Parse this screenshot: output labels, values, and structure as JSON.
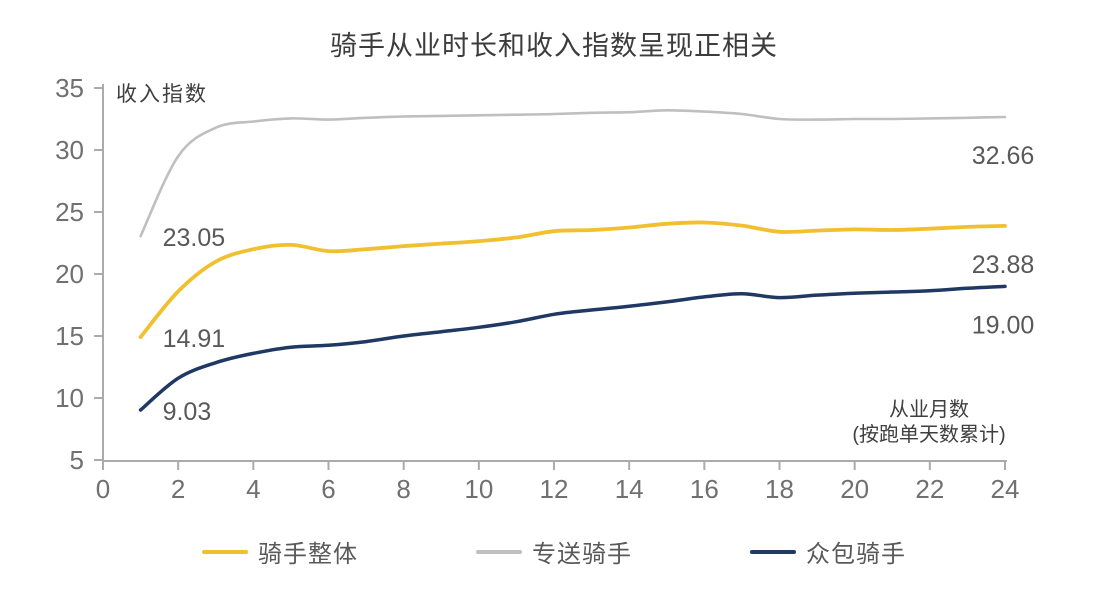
{
  "chart_data": {
    "type": "line",
    "title": "骑手从业时长和收入指数呈现正相关",
    "ylabel": "收入指数",
    "xlabel_line1": "从业月数",
    "xlabel_line2": "(按跑单天数累计)",
    "xlim": [
      0,
      24
    ],
    "ylim": [
      5,
      35
    ],
    "xticks": [
      0,
      2,
      4,
      6,
      8,
      10,
      12,
      14,
      16,
      18,
      20,
      22,
      24
    ],
    "yticks": [
      5,
      10,
      15,
      20,
      25,
      30,
      35
    ],
    "grid": false,
    "legend_position": "bottom",
    "x_months": [
      1,
      2,
      3,
      4,
      5,
      6,
      7,
      8,
      9,
      10,
      11,
      12,
      13,
      14,
      15,
      16,
      17,
      18,
      19,
      20,
      21,
      22,
      23,
      24
    ],
    "series": [
      {
        "key": "dedicated",
        "name": "专送骑手",
        "color": "#BFBFBF",
        "values": [
          23.05,
          29.5,
          31.8,
          32.3,
          32.55,
          32.45,
          32.6,
          32.7,
          32.75,
          32.8,
          32.85,
          32.9,
          33.0,
          33.05,
          33.2,
          33.1,
          32.9,
          32.5,
          32.45,
          32.5,
          32.5,
          32.55,
          32.6,
          32.66
        ],
        "value_labels": {
          "start": "23.05",
          "end": "32.66"
        }
      },
      {
        "key": "overall",
        "name": "骑手整体",
        "color": "#F1C02E",
        "values": [
          14.91,
          18.6,
          21.0,
          22.0,
          22.35,
          21.85,
          22.0,
          22.25,
          22.45,
          22.65,
          22.95,
          23.45,
          23.55,
          23.75,
          24.05,
          24.15,
          23.9,
          23.4,
          23.5,
          23.6,
          23.55,
          23.65,
          23.8,
          23.88
        ],
        "value_labels": {
          "start": "14.91",
          "end": "23.88"
        }
      },
      {
        "key": "crowdsourced",
        "name": "众包骑手",
        "color": "#1F3864",
        "values": [
          9.03,
          11.6,
          12.85,
          13.6,
          14.1,
          14.25,
          14.55,
          15.0,
          15.35,
          15.7,
          16.15,
          16.75,
          17.1,
          17.4,
          17.75,
          18.15,
          18.4,
          18.1,
          18.3,
          18.45,
          18.55,
          18.65,
          18.85,
          19.0
        ],
        "value_labels": {
          "start": "9.03",
          "end": "19.00"
        }
      }
    ],
    "legend": [
      {
        "key": "overall",
        "label": "骑手整体",
        "color": "#F1C02E"
      },
      {
        "key": "dedicated",
        "label": "专送骑手",
        "color": "#BFBFBF"
      },
      {
        "key": "crowdsourced",
        "label": "众包骑手",
        "color": "#1F3864"
      }
    ]
  },
  "colors": {
    "axis": "#ABABAB",
    "tick_label": "#707070",
    "value_label": "#595959",
    "axis_text": "#3f3f3f",
    "background": "#ffffff"
  }
}
